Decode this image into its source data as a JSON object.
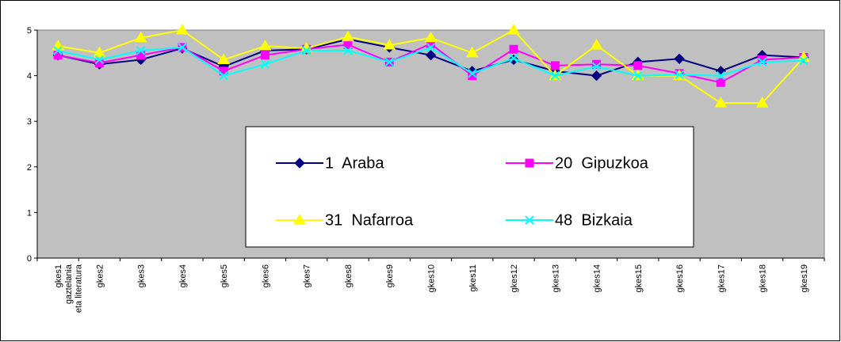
{
  "chart_data": {
    "type": "line",
    "categories": [
      "gkes1\ngaztelania\neta literatura",
      "gkes2",
      "gkes3",
      "gkes4",
      "gkes5",
      "gkes6",
      "gkes7",
      "gkes8",
      "gkes9",
      "gkes10",
      "gkes11",
      "gkes12",
      "gkes13",
      "gkes14",
      "gkes15",
      "gkes16",
      "gkes17",
      "gkes18",
      "gkes19"
    ],
    "series": [
      {
        "name": "1  Araba",
        "color": "#000080",
        "marker": "diamond",
        "values": [
          4.45,
          4.25,
          4.35,
          4.6,
          4.2,
          4.55,
          4.58,
          4.8,
          4.62,
          4.45,
          4.1,
          4.35,
          4.1,
          4.0,
          4.3,
          4.37,
          4.1,
          4.45,
          4.4
        ]
      },
      {
        "name": "20  Gipuzkoa",
        "color": "#ff00ff",
        "marker": "square",
        "values": [
          4.45,
          4.28,
          4.45,
          4.62,
          4.1,
          4.45,
          4.58,
          4.68,
          4.3,
          4.7,
          4.0,
          4.58,
          4.22,
          4.25,
          4.22,
          4.05,
          3.85,
          4.35,
          4.4
        ]
      },
      {
        "name": "31  Nafarroa",
        "color": "#ffff00",
        "marker": "triangle",
        "values": [
          4.65,
          4.5,
          4.83,
          5.0,
          4.35,
          4.65,
          4.6,
          4.85,
          4.67,
          4.83,
          4.5,
          5.0,
          4.0,
          4.67,
          4.0,
          4.0,
          3.4,
          3.4,
          4.4
        ]
      },
      {
        "name": "48  Bizkaia",
        "color": "#00ffff",
        "marker": "x",
        "values": [
          4.55,
          4.35,
          4.55,
          4.62,
          4.0,
          4.25,
          4.55,
          4.55,
          4.3,
          4.62,
          4.05,
          4.38,
          4.0,
          4.2,
          4.0,
          4.02,
          4.0,
          4.3,
          4.33
        ]
      }
    ],
    "ylim": [
      0,
      5
    ],
    "yticks": [
      0,
      1,
      2,
      3,
      4,
      5
    ],
    "grid": false,
    "legend": "center"
  }
}
